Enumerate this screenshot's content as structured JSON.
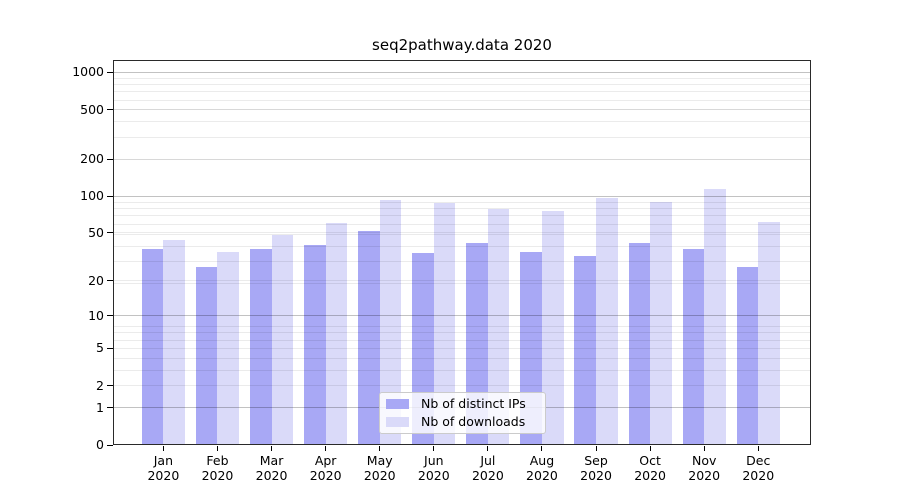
{
  "chart_data": {
    "type": "bar",
    "title": "seq2pathway.data 2020",
    "xlabel": "",
    "ylabel": "",
    "yscale": "log1p",
    "grid": true,
    "legend_position": "lower center inside",
    "categories": [
      "Jan 2020",
      "Feb 2020",
      "Mar 2020",
      "Apr 2020",
      "May 2020",
      "Jun 2020",
      "Jul 2020",
      "Aug 2020",
      "Sep 2020",
      "Oct 2020",
      "Nov 2020",
      "Dec 2020"
    ],
    "series": [
      {
        "name": "Nb of distinct IPs",
        "color": "#a8a8f5",
        "values": [
          37,
          26,
          37,
          40,
          52,
          34,
          41,
          35,
          32,
          41,
          37,
          26
        ]
      },
      {
        "name": "Nb of downloads",
        "color": "#dadaf9",
        "values": [
          44,
          35,
          48,
          60,
          93,
          88,
          78,
          75,
          97,
          90,
          114,
          61
        ]
      }
    ],
    "yticks": [
      0,
      1,
      2,
      5,
      10,
      20,
      50,
      100,
      200,
      500,
      1000
    ],
    "major_gridline_values": [
      1,
      10,
      100,
      1000
    ],
    "ylim": [
      0,
      1260
    ]
  },
  "style": {
    "background": "#ffffff",
    "spine_color": "#2a2a2a",
    "text_color": "#000000",
    "grid_major": "rgba(0,0,0,0.24)",
    "grid_minor": "rgba(0,0,0,0.08)",
    "legend_bg": "rgba(255,255,255,0.8)",
    "legend_border": "#cbcbcb"
  }
}
